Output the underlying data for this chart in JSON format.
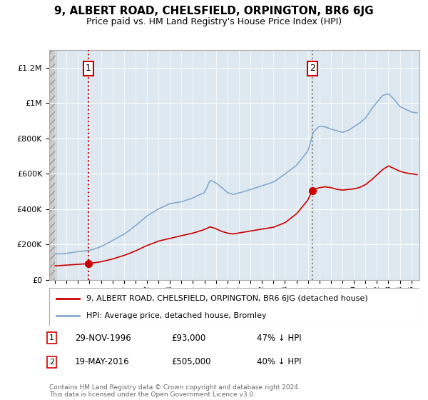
{
  "title": "9, ALBERT ROAD, CHELSFIELD, ORPINGTON, BR6 6JG",
  "subtitle": "Price paid vs. HM Land Registry's House Price Index (HPI)",
  "title_fontsize": 11,
  "subtitle_fontsize": 9,
  "sale1_date": 1996.91,
  "sale1_price": 93000,
  "sale1_label": "1",
  "sale2_date": 2016.38,
  "sale2_price": 505000,
  "sale2_label": "2",
  "legend_label_red": "9, ALBERT ROAD, CHELSFIELD, ORPINGTON, BR6 6JG (detached house)",
  "legend_label_blue": "HPI: Average price, detached house, Bromley",
  "footer": "Contains HM Land Registry data © Crown copyright and database right 2024.\nThis data is licensed under the Open Government Licence v3.0.",
  "red_color": "#cc0000",
  "blue_color": "#88aacc",
  "bg_color": "#dde8f0",
  "grid_color": "#ffffff",
  "ylim": [
    0,
    1300000
  ],
  "xlim_start": 1993.5,
  "xlim_end": 2025.7,
  "hatch_end": 1994.08
}
